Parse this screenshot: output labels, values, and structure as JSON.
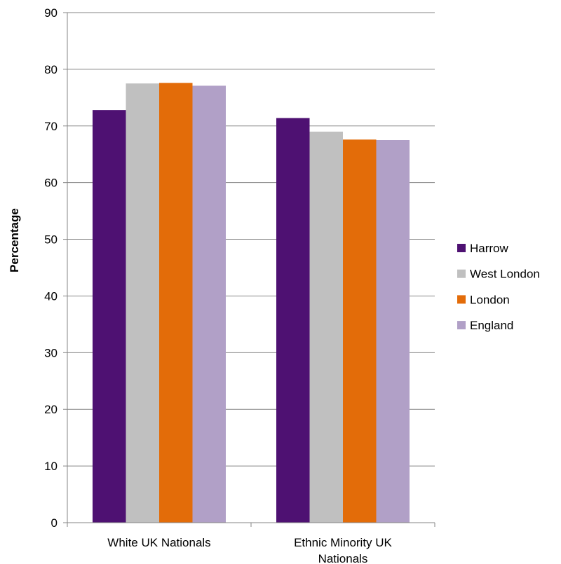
{
  "chart_data": {
    "type": "bar",
    "title": "",
    "xlabel": "",
    "ylabel": "Percentage",
    "ylim": [
      0,
      90
    ],
    "yticks": [
      0,
      10,
      20,
      30,
      40,
      50,
      60,
      70,
      80,
      90
    ],
    "grid": true,
    "legend_position": "right",
    "categories": [
      [
        "White UK Nationals"
      ],
      [
        "Ethnic Minority UK",
        "Nationals"
      ]
    ],
    "series": [
      {
        "name": "Harrow",
        "color": "#4e1172",
        "values": [
          72.8,
          71.4
        ]
      },
      {
        "name": "West London",
        "color": "#c0c0c0",
        "values": [
          77.5,
          69.0
        ]
      },
      {
        "name": "London",
        "color": "#e36c09",
        "values": [
          77.6,
          67.6
        ]
      },
      {
        "name": "England",
        "color": "#b1a0c7",
        "values": [
          77.1,
          67.5
        ]
      }
    ]
  }
}
